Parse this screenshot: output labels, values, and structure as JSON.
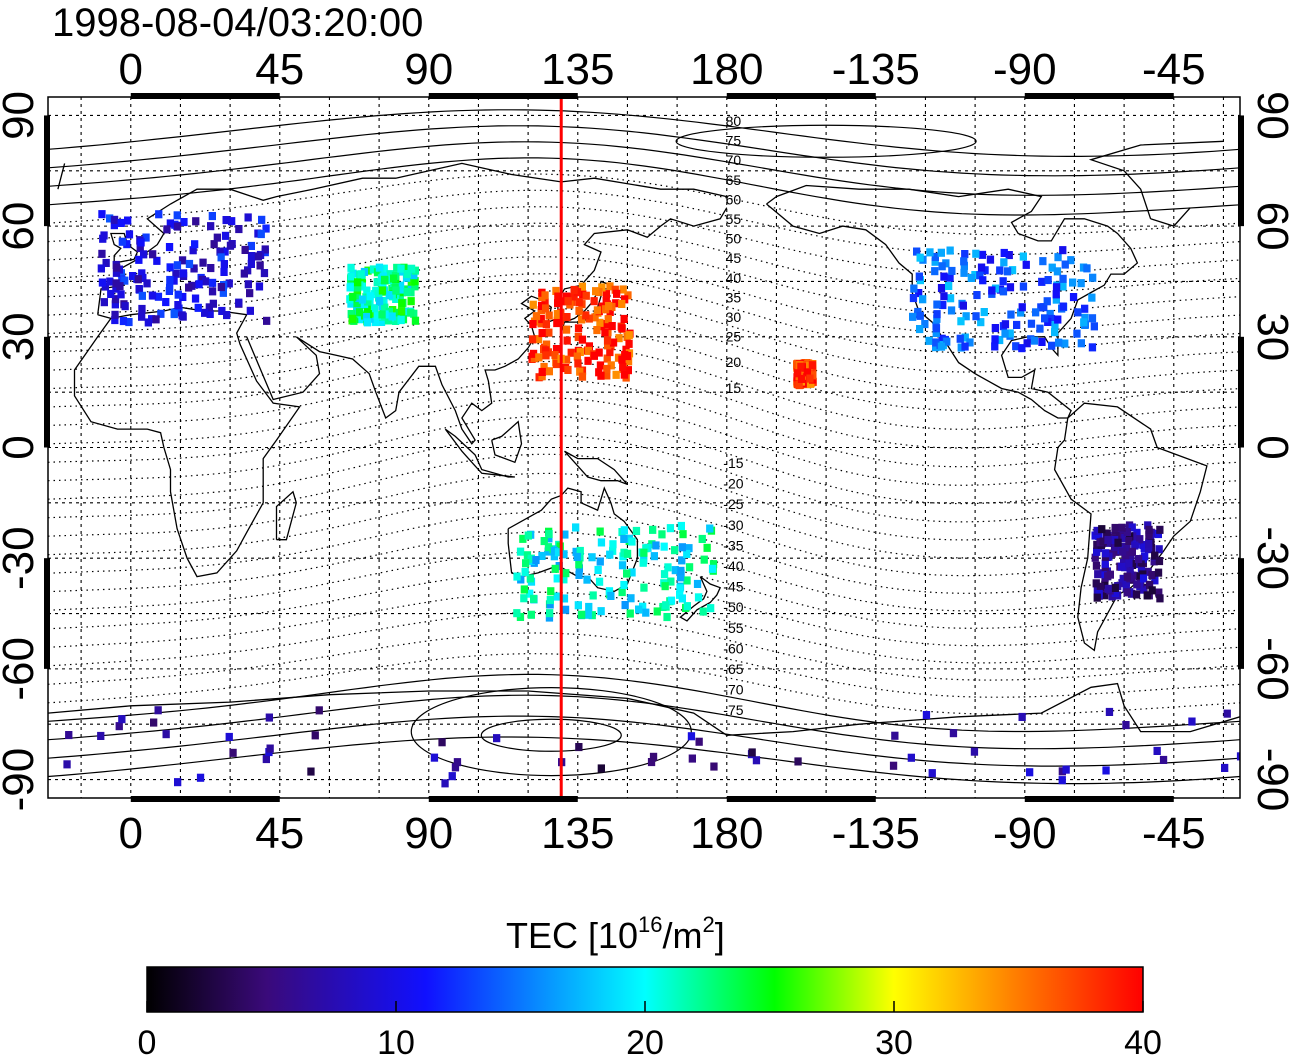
{
  "timestamp": "1998-08-04/03:20:00",
  "top_axis_labels": [
    "0",
    "45",
    "90",
    "135",
    "180",
    "-135",
    "-90",
    "-45"
  ],
  "bottom_axis_labels": [
    "0",
    "45",
    "90",
    "135",
    "180",
    "-135",
    "-90",
    "-45"
  ],
  "left_axis_labels": [
    "90",
    "60",
    "30",
    "0",
    "-30",
    "-60",
    "-90"
  ],
  "right_axis_labels": [
    "90",
    "60",
    "30",
    "0",
    "-30",
    "-60",
    "-90"
  ],
  "contour_labels_north": [
    "80",
    "75",
    "70",
    "65",
    "60",
    "55",
    "50",
    "45",
    "40",
    "35",
    "30",
    "25",
    "20",
    "15"
  ],
  "contour_labels_south": [
    "-15",
    "-20",
    "-25",
    "-30",
    "-35",
    "-40",
    "-45",
    "-50",
    "-55",
    "-60",
    "-65",
    "-70",
    "-75"
  ],
  "colorbar": {
    "title_main": "TEC  [10",
    "title_sup1": "16",
    "title_mid": "/m",
    "title_sup2": "2",
    "title_end": "]",
    "ticks": [
      "0",
      "10",
      "20",
      "30",
      "40"
    ],
    "min": 0,
    "max": 40
  },
  "colors": {
    "meridian_line": "#ff0000",
    "colormap": [
      "#000000",
      "#3a0a7a",
      "#1010ff",
      "#00ffff",
      "#00ff00",
      "#ffff00",
      "#ff8000",
      "#ff0000"
    ]
  },
  "map": {
    "lon_left_edge": -25,
    "lat_range": [
      -95,
      95
    ],
    "marked_meridian_lon": 130
  },
  "chart_data": {
    "type": "heatmap",
    "variable": "TEC",
    "units": "10^16/m^2",
    "value_range": [
      0,
      40
    ],
    "regions": [
      {
        "region": "Europe",
        "lon": [
          -10,
          40
        ],
        "lat": [
          35,
          65
        ],
        "tec_approx": 10
      },
      {
        "region": "Japan / East Asia",
        "lon": [
          120,
          150
        ],
        "lat": [
          20,
          45
        ],
        "tec_approx": 38
      },
      {
        "region": "Central Asia",
        "lon": [
          65,
          85
        ],
        "lat": [
          35,
          50
        ],
        "tec_approx": 22
      },
      {
        "region": "North America",
        "lon": [
          -125,
          -70
        ],
        "lat": [
          28,
          55
        ],
        "tec_approx": 14
      },
      {
        "region": "Hawaii",
        "lon": [
          -160,
          -155
        ],
        "lat": [
          18,
          24
        ],
        "tec_approx": 38
      },
      {
        "region": "South America",
        "lon": [
          -70,
          -50
        ],
        "lat": [
          -40,
          -20
        ],
        "tec_approx": 6
      },
      {
        "region": "Australia / New Zealand",
        "lon": [
          115,
          175
        ],
        "lat": [
          -45,
          -20
        ],
        "tec_approx": 20
      },
      {
        "region": "Antarctica",
        "lon": [
          -25,
          335
        ],
        "lat": [
          -90,
          -70
        ],
        "tec_approx": 6
      }
    ]
  }
}
